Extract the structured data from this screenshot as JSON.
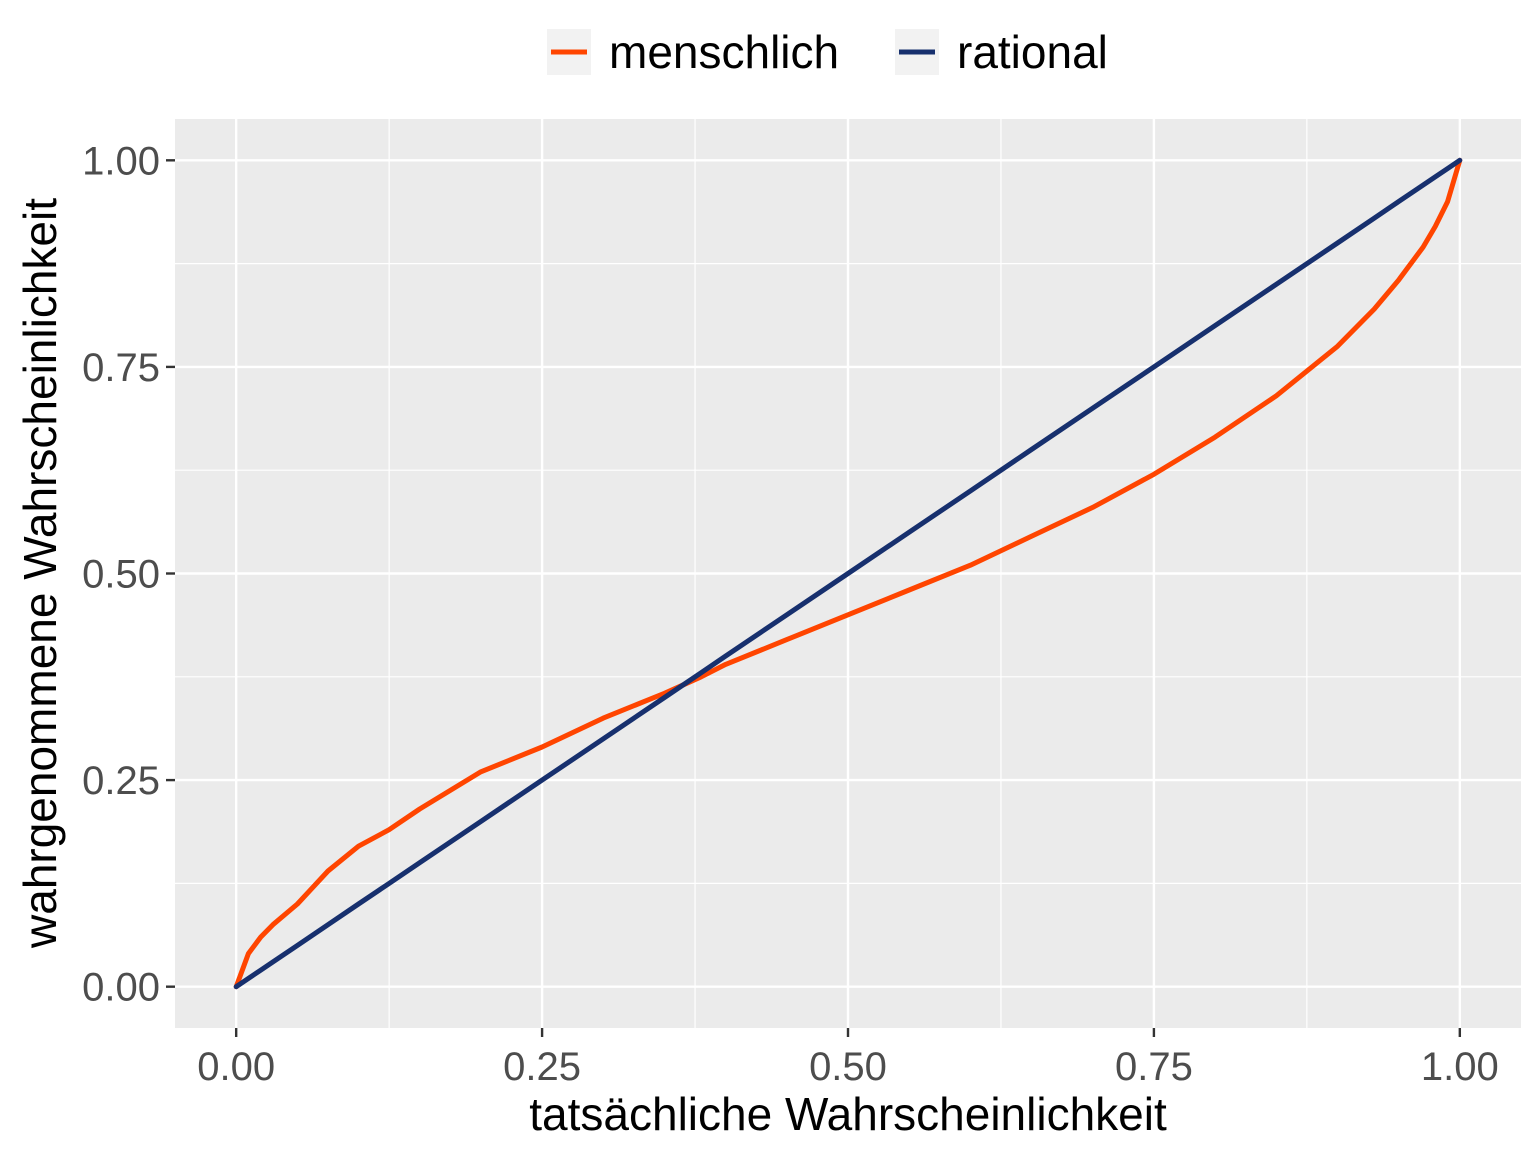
{
  "chart_data": {
    "type": "line",
    "title": "",
    "xlabel": "tatsächliche Wahrscheinlichkeit",
    "ylabel": "wahrgenommene Wahrscheinlichkeit",
    "xlim": [
      -0.05,
      1.05
    ],
    "ylim": [
      -0.05,
      1.05
    ],
    "x_ticks": [
      0,
      0.25,
      0.5,
      0.75,
      1
    ],
    "x_tick_labels": [
      "0.00",
      "0.25",
      "0.50",
      "0.75",
      "1.00"
    ],
    "y_ticks": [
      0,
      0.25,
      0.5,
      0.75,
      1
    ],
    "y_tick_labels": [
      "0.00",
      "0.25",
      "0.50",
      "0.75",
      "1.00"
    ],
    "grid": true,
    "legend_position": "top",
    "x": [
      0,
      0.01,
      0.02,
      0.03,
      0.05,
      0.075,
      0.1,
      0.125,
      0.15,
      0.2,
      0.25,
      0.3,
      0.35,
      0.38,
      0.4,
      0.45,
      0.5,
      0.55,
      0.6,
      0.65,
      0.7,
      0.75,
      0.8,
      0.85,
      0.9,
      0.93,
      0.95,
      0.97,
      0.98,
      0.99,
      1
    ],
    "series": [
      {
        "name": "menschlich",
        "color": "#FF4500",
        "values": [
          0,
          0.04,
          0.06,
          0.075,
          0.1,
          0.14,
          0.17,
          0.19,
          0.215,
          0.26,
          0.29,
          0.325,
          0.355,
          0.375,
          0.39,
          0.42,
          0.45,
          0.48,
          0.51,
          0.545,
          0.58,
          0.62,
          0.665,
          0.715,
          0.775,
          0.82,
          0.855,
          0.895,
          0.92,
          0.95,
          1
        ]
      },
      {
        "name": "rational",
        "color": "#17306E",
        "values": [
          0,
          0.01,
          0.02,
          0.03,
          0.05,
          0.075,
          0.1,
          0.125,
          0.15,
          0.2,
          0.25,
          0.3,
          0.35,
          0.38,
          0.4,
          0.45,
          0.5,
          0.55,
          0.6,
          0.65,
          0.7,
          0.75,
          0.8,
          0.85,
          0.9,
          0.93,
          0.95,
          0.97,
          0.98,
          0.99,
          1
        ]
      }
    ],
    "panel_background": "#EBEBEB",
    "grid_color": "#FFFFFF"
  }
}
